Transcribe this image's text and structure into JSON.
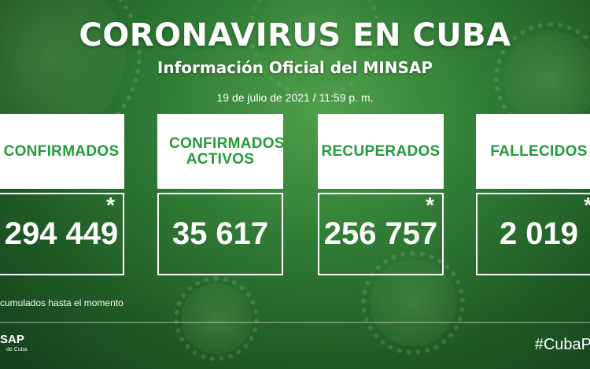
{
  "header": {
    "title": "CORONAVIRUS EN CUBA",
    "subtitle": "Información Oficial del MINSAP",
    "date": "19 de julio de 2021 / 11:59 p. m."
  },
  "cards": [
    {
      "label": "CONFIRMADOS",
      "value": "294 449",
      "asterisk": "*"
    },
    {
      "label": "CONFIRMADOS ACTIVOS",
      "value": "35 617",
      "asterisk": ""
    },
    {
      "label": "RECUPERADOS",
      "value": "256 757",
      "asterisk": "*"
    },
    {
      "label": "FALLECIDOS",
      "value": "2 019",
      "asterisk": "*"
    }
  ],
  "footer": {
    "note": "cumulados hasta el momento",
    "logo_main": "SAP",
    "logo_sub": "de Cuba",
    "hashtag": "#CubaP"
  }
}
